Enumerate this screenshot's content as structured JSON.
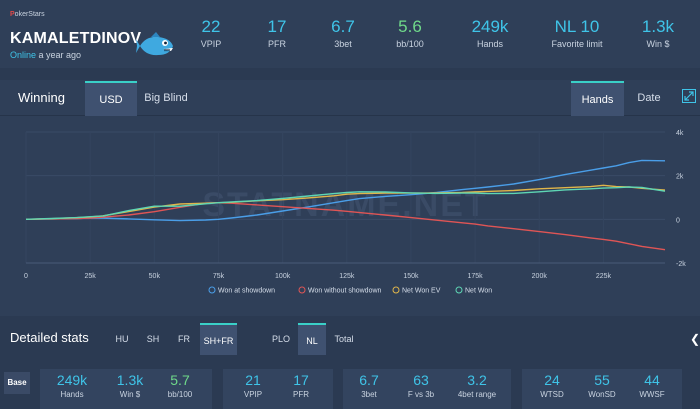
{
  "header": {
    "brand_prefix": "P",
    "brand_rest": "okerStars",
    "player_name": "KAMALETDINOV",
    "online_label": "Online",
    "last_seen": "a year ago",
    "stats": [
      {
        "value": "22",
        "label": "VPIP",
        "color": "blue"
      },
      {
        "value": "17",
        "label": "PFR",
        "color": "blue"
      },
      {
        "value": "6.7",
        "label": "3bet",
        "color": "blue"
      },
      {
        "value": "5.6",
        "label": "bb/100",
        "color": "green"
      },
      {
        "value": "249k",
        "label": "Hands",
        "color": "blue"
      },
      {
        "value": "NL 10",
        "label": "Favorite limit",
        "color": "blue"
      },
      {
        "value": "1.3k",
        "label": "Win $",
        "color": "blue"
      }
    ]
  },
  "chart_panel": {
    "title": "Winning",
    "unit_tabs": [
      "USD",
      "Big Blind"
    ],
    "unit_active": "USD",
    "axis_tabs": [
      "Hands",
      "Date"
    ],
    "axis_active": "Hands",
    "watermark": "STATNAME.NET"
  },
  "chart_data": {
    "type": "line",
    "xlabel": "",
    "ylabel": "",
    "x_ticks": [
      "0",
      "25k",
      "50k",
      "75k",
      "100k",
      "125k",
      "150k",
      "175k",
      "200k",
      "225k"
    ],
    "y_ticks": [
      "4k",
      "2k",
      "0",
      "-2k"
    ],
    "xlim": [
      0,
      249000
    ],
    "ylim": [
      -2000,
      4000
    ],
    "grid": true,
    "legend_position": "bottom",
    "x": [
      0,
      10000,
      20000,
      25000,
      30000,
      40000,
      50000,
      60000,
      70000,
      75000,
      80000,
      90000,
      100000,
      110000,
      120000,
      125000,
      130000,
      140000,
      150000,
      160000,
      170000,
      175000,
      180000,
      190000,
      200000,
      210000,
      220000,
      225000,
      230000,
      235000,
      240000,
      249000
    ],
    "series": [
      {
        "name": "Won at showdown",
        "color": "#4a9ee8",
        "values": [
          0,
          20,
          40,
          60,
          50,
          20,
          -20,
          -60,
          -30,
          0,
          60,
          200,
          380,
          570,
          760,
          860,
          950,
          1050,
          1130,
          1230,
          1360,
          1420,
          1480,
          1620,
          1820,
          2050,
          2250,
          2350,
          2450,
          2600,
          2700,
          2680
        ]
      },
      {
        "name": "Won without showdown",
        "color": "#e05555",
        "values": [
          0,
          20,
          40,
          60,
          100,
          200,
          350,
          550,
          740,
          760,
          740,
          660,
          580,
          500,
          420,
          370,
          310,
          200,
          80,
          -40,
          -160,
          -220,
          -300,
          -430,
          -560,
          -700,
          -850,
          -920,
          -1000,
          -1120,
          -1240,
          -1390
        ]
      },
      {
        "name": "Net Won EV",
        "color": "#e0b54a",
        "values": [
          0,
          30,
          80,
          110,
          160,
          360,
          560,
          700,
          740,
          760,
          780,
          850,
          900,
          980,
          1080,
          1150,
          1180,
          1200,
          1200,
          1210,
          1230,
          1260,
          1280,
          1320,
          1400,
          1450,
          1500,
          1560,
          1500,
          1480,
          1420,
          1340
        ]
      },
      {
        "name": "Net Won",
        "color": "#5ed6b4",
        "values": [
          0,
          40,
          80,
          120,
          150,
          400,
          600,
          600,
          710,
          760,
          800,
          860,
          960,
          1070,
          1180,
          1230,
          1260,
          1250,
          1210,
          1190,
          1200,
          1200,
          1180,
          1190,
          1260,
          1350,
          1400,
          1430,
          1450,
          1480,
          1460,
          1290
        ]
      }
    ]
  },
  "detailed": {
    "title": "Detailed stats",
    "game_tabs": [
      "HU",
      "SH",
      "FR",
      "SH+FR"
    ],
    "game_active": "SH+FR",
    "type_tabs": [
      "PLO",
      "NL",
      "Total"
    ],
    "type_active": "NL",
    "side_arrow": "❮",
    "base_label": "Base",
    "groups": [
      [
        {
          "value": "249k",
          "label": "Hands",
          "color": "blue"
        },
        {
          "value": "1.3k",
          "label": "Win $",
          "color": "blue"
        },
        {
          "value": "5.7",
          "label": "bb/100",
          "color": "green"
        }
      ],
      [
        {
          "value": "21",
          "label": "VPIP",
          "color": "blue"
        },
        {
          "value": "17",
          "label": "PFR",
          "color": "blue"
        }
      ],
      [
        {
          "value": "6.7",
          "label": "3bet",
          "color": "blue"
        },
        {
          "value": "63",
          "label": "F vs 3b",
          "color": "blue"
        },
        {
          "value": "3.2",
          "label": "4bet range",
          "color": "blue"
        }
      ],
      [
        {
          "value": "24",
          "label": "WTSD",
          "color": "blue"
        },
        {
          "value": "55",
          "label": "WonSD",
          "color": "blue"
        },
        {
          "value": "44",
          "label": "WWSF",
          "color": "blue"
        }
      ]
    ]
  }
}
